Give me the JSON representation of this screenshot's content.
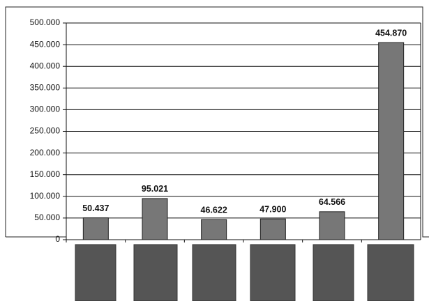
{
  "chart_data": {
    "type": "bar",
    "categories": [
      null,
      null,
      null,
      null,
      null,
      null
    ],
    "values": [
      50437,
      95021,
      46622,
      47900,
      64566,
      454870
    ],
    "value_labels": [
      "50.437",
      "95.021",
      "46.622",
      "47.900",
      "64.566",
      "454.870"
    ],
    "color": "#777777",
    "ylim": [
      0,
      500000
    ],
    "yticks": [
      0,
      {
        "value": 50000,
        "label": "50.000"
      },
      {
        "value": 100000,
        "label": "100.000"
      },
      {
        "value": 150000,
        "label": "150.000"
      },
      {
        "value": 200000,
        "label": "200.000"
      },
      {
        "value": 250000,
        "label": "250.000"
      },
      {
        "value": 300000,
        "label": "300.000"
      },
      {
        "value": 350000,
        "label": "350.000"
      },
      {
        "value": 400000,
        "label": "400.000"
      },
      {
        "value": 450000,
        "label": "450.000"
      },
      {
        "value": 500000,
        "label": "500.000"
      }
    ],
    "grid": true
  }
}
